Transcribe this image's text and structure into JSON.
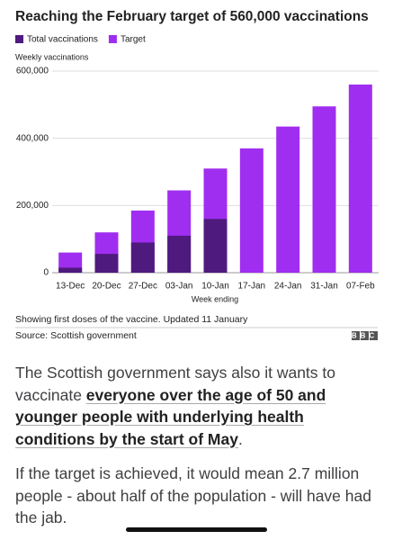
{
  "chart_data": {
    "type": "bar",
    "title": "Reaching the February target of 560,000 vaccinations",
    "y_label": "Weekly vaccinations",
    "x_label": "Week ending",
    "categories": [
      "13-Dec",
      "20-Dec",
      "27-Dec",
      "03-Jan",
      "10-Jan",
      "17-Jan",
      "24-Jan",
      "31-Jan",
      "07-Feb"
    ],
    "series": [
      {
        "name": "Total vaccinations",
        "color": "#4f1a7e",
        "values": [
          15000,
          56000,
          90000,
          110000,
          160000,
          null,
          null,
          null,
          null
        ]
      },
      {
        "name": "Target",
        "color": "#a02ef0",
        "values": [
          60000,
          120000,
          185000,
          245000,
          310000,
          370000,
          435000,
          495000,
          560000
        ]
      }
    ],
    "overlay": true,
    "ylim": [
      0,
      600000
    ],
    "yticks": [
      0,
      {
        "value": 200000,
        "label": "200,000"
      },
      {
        "value": 400000,
        "label": "400,000"
      },
      {
        "value": 600000,
        "label": "600,000"
      }
    ],
    "grid": true,
    "note": "Showing first doses of the vaccine. Updated 11 January",
    "source": "Source: Scottish government",
    "logo": "BBC"
  },
  "article": {
    "paragraph_1": [
      "The Scottish government says also it wants to vaccinate ",
      "everyone over the age of 50 and younger people with underlying health conditions by the start of May",
      "."
    ],
    "paragraph_2": "If the target is achieved, it would mean 2.7 million people - about half of the population - will have had the jab."
  }
}
